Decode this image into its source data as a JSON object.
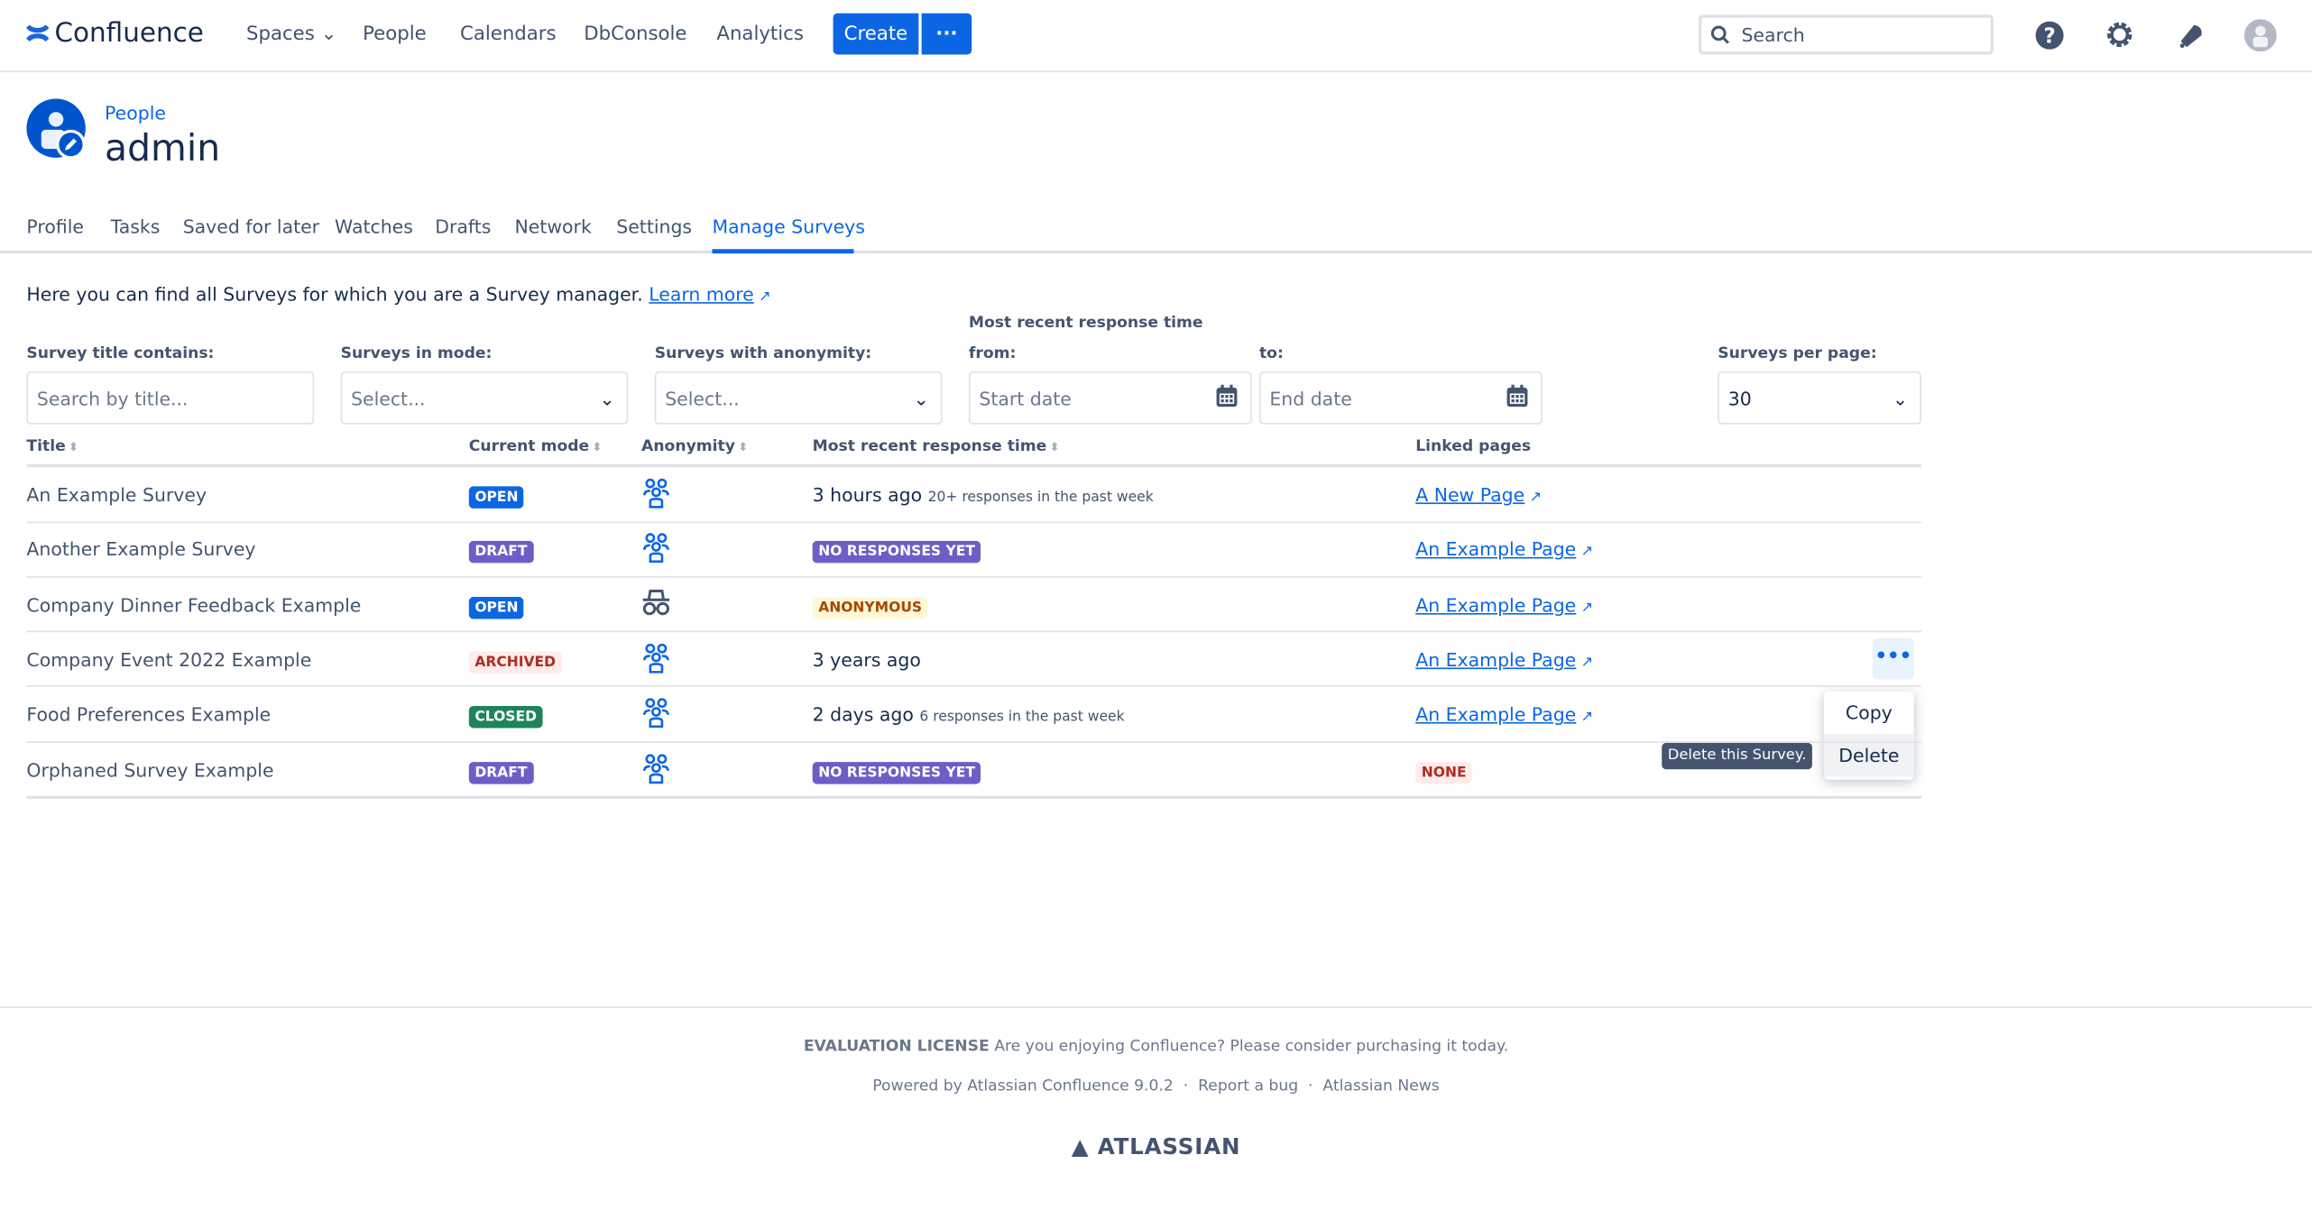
{
  "app": {
    "name": "Confluence",
    "brand_color": "#0c66e4"
  },
  "topnav": {
    "items": [
      {
        "label": "Spaces"
      },
      {
        "label": "People"
      },
      {
        "label": "Calendars"
      },
      {
        "label": "DbConsole"
      },
      {
        "label": "Analytics"
      }
    ],
    "create_label": "Create",
    "more_label": "···",
    "search_placeholder": "Search"
  },
  "profile": {
    "breadcrumb": "People",
    "name": "admin"
  },
  "tabs": [
    {
      "label": "Profile"
    },
    {
      "label": "Tasks"
    },
    {
      "label": "Saved for later"
    },
    {
      "label": "Watches"
    },
    {
      "label": "Drafts"
    },
    {
      "label": "Network"
    },
    {
      "label": "Settings"
    },
    {
      "label": "Manage Surveys",
      "active": true
    }
  ],
  "intro": {
    "text": "Here you can find all Surveys for which you are a Survey manager. ",
    "link": "Learn more"
  },
  "filters": {
    "title_label": "Survey title contains:",
    "title_placeholder": "Search by title...",
    "mode_label": "Surveys in mode:",
    "mode_value": "Select...",
    "anon_label": "Surveys with anonymity:",
    "anon_value": "Select...",
    "range_label": "Most recent response time",
    "from_label": "from:",
    "from_placeholder": "Start date",
    "to_label": "to:",
    "to_placeholder": "End date",
    "per_page_label": "Surveys per page:",
    "per_page_value": "30"
  },
  "table": {
    "headers": [
      "Title",
      "Current mode",
      "Anonymity",
      "Most recent response time",
      "Linked pages"
    ],
    "rows": [
      {
        "title": "An Example Survey",
        "mode": "OPEN",
        "anon_icon": "people-icon",
        "time": "3 hours ago",
        "time_note": "20+ responses in the past week",
        "link": "A New Page"
      },
      {
        "title": "Another Example Survey",
        "mode": "DRAFT",
        "anon_icon": "people-icon",
        "time_badge": "NO RESPONSES YET",
        "link": "An Example Page"
      },
      {
        "title": "Company Dinner Feedback Example",
        "mode": "OPEN",
        "anon_icon": "incognito-icon",
        "time_badge": "ANONYMOUS",
        "link": "An Example Page"
      },
      {
        "title": "Company Event 2022 Example",
        "mode": "ARCHIVED",
        "anon_icon": "people-icon",
        "time": "3 years ago",
        "link": "An Example Page"
      },
      {
        "title": "Food Preferences Example",
        "mode": "CLOSED",
        "anon_icon": "people-icon",
        "time": "2 days ago",
        "time_note": "6 responses in the past week",
        "link": "An Example Page"
      },
      {
        "title": "Orphaned Survey Example",
        "mode": "DRAFT",
        "anon_icon": "people-icon",
        "time_badge": "NO RESPONSES YET",
        "link_badge": "NONE"
      }
    ]
  },
  "row_menu": {
    "items": [
      "Copy",
      "Delete"
    ],
    "tooltip": "Delete this Survey."
  },
  "badge_colors": {
    "OPEN": [
      "#0c66e4",
      "#ffffff"
    ],
    "DRAFT": [
      "#6e5dc6",
      "#ffffff"
    ],
    "CLOSED": [
      "#1f845a",
      "#ffffff"
    ],
    "ARCHIVED": [
      "#ffeceb",
      "#ae2e24"
    ],
    "NO RESPONSES YET": [
      "#6e5dc6",
      "#ffffff"
    ],
    "ANONYMOUS": [
      "#fff7d6",
      "#a54800"
    ],
    "NONE": [
      "#ffeceb",
      "#ae2e24"
    ]
  },
  "footer": {
    "license_bold": "EVALUATION LICENSE",
    "license_text": " Are you enjoying Confluence? Please consider purchasing it today.",
    "powered": "Powered by Atlassian Confluence 9.0.2",
    "report": "Report a bug",
    "news": "Atlassian News",
    "logo": "ATLASSIAN"
  }
}
